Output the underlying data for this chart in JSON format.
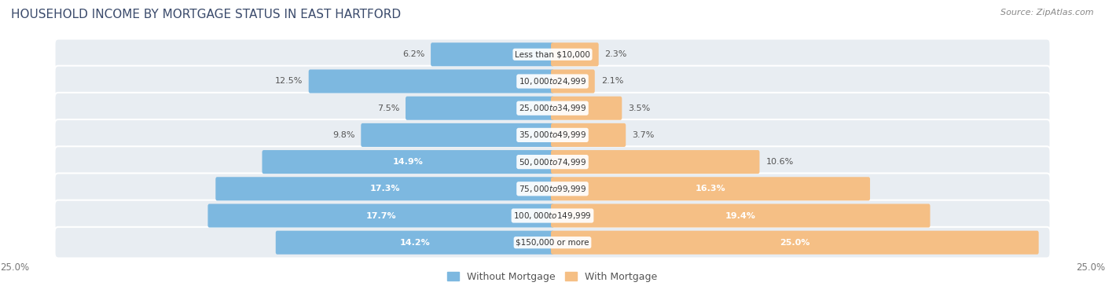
{
  "title": "HOUSEHOLD INCOME BY MORTGAGE STATUS IN EAST HARTFORD",
  "source": "Source: ZipAtlas.com",
  "categories": [
    "Less than $10,000",
    "$10,000 to $24,999",
    "$25,000 to $34,999",
    "$35,000 to $49,999",
    "$50,000 to $74,999",
    "$75,000 to $99,999",
    "$100,000 to $149,999",
    "$150,000 or more"
  ],
  "without_mortgage": [
    6.2,
    12.5,
    7.5,
    9.8,
    14.9,
    17.3,
    17.7,
    14.2
  ],
  "with_mortgage": [
    2.3,
    2.1,
    3.5,
    3.7,
    10.6,
    16.3,
    19.4,
    25.0
  ],
  "color_without": "#7db8e0",
  "color_with": "#f5bf85",
  "bg_color": "#ffffff",
  "row_bg": "#e8edf2",
  "max_val": 25.0,
  "legend_without": "Without Mortgage",
  "legend_with": "With Mortgage",
  "axis_label_left": "25.0%",
  "axis_label_right": "25.0%",
  "title_color": "#3a4a6b",
  "source_color": "#888888",
  "label_dark_color": "#555555",
  "label_white_color": "#ffffff",
  "white_threshold": 14.0
}
